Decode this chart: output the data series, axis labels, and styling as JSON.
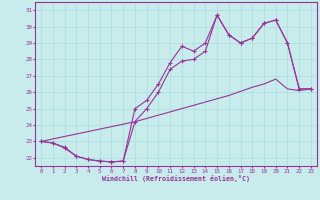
{
  "xlabel": "Windchill (Refroidissement éolien,°C)",
  "bg_color": "#c8ecec",
  "line_color": "#993399",
  "grid_color": "#aadddd",
  "xlim": [
    -0.5,
    23.5
  ],
  "ylim": [
    21.5,
    31.5
  ],
  "yticks": [
    22,
    23,
    24,
    25,
    26,
    27,
    28,
    29,
    30,
    31
  ],
  "xticks": [
    0,
    1,
    2,
    3,
    4,
    5,
    6,
    7,
    8,
    9,
    10,
    11,
    12,
    13,
    14,
    15,
    16,
    17,
    18,
    19,
    20,
    21,
    22,
    23
  ],
  "series1": [
    23.0,
    22.9,
    22.6,
    22.1,
    21.9,
    21.8,
    21.75,
    21.8,
    25.0,
    25.5,
    26.5,
    27.8,
    28.8,
    28.5,
    29.0,
    30.7,
    29.5,
    29.0,
    29.3,
    30.2,
    30.4,
    29.0,
    26.2,
    26.2
  ],
  "series2": [
    23.0,
    22.9,
    22.65,
    22.1,
    21.9,
    21.8,
    21.75,
    21.8,
    24.2,
    25.0,
    26.0,
    27.4,
    27.9,
    28.0,
    28.5,
    30.7,
    29.5,
    29.0,
    29.3,
    30.2,
    30.4,
    29.0,
    26.2,
    26.2
  ],
  "series_trend": [
    23.0,
    23.15,
    23.3,
    23.45,
    23.6,
    23.75,
    23.9,
    24.05,
    24.2,
    24.4,
    24.6,
    24.8,
    25.0,
    25.2,
    25.4,
    25.6,
    25.8,
    26.05,
    26.3,
    26.5,
    26.8,
    26.2,
    26.1,
    26.2
  ]
}
